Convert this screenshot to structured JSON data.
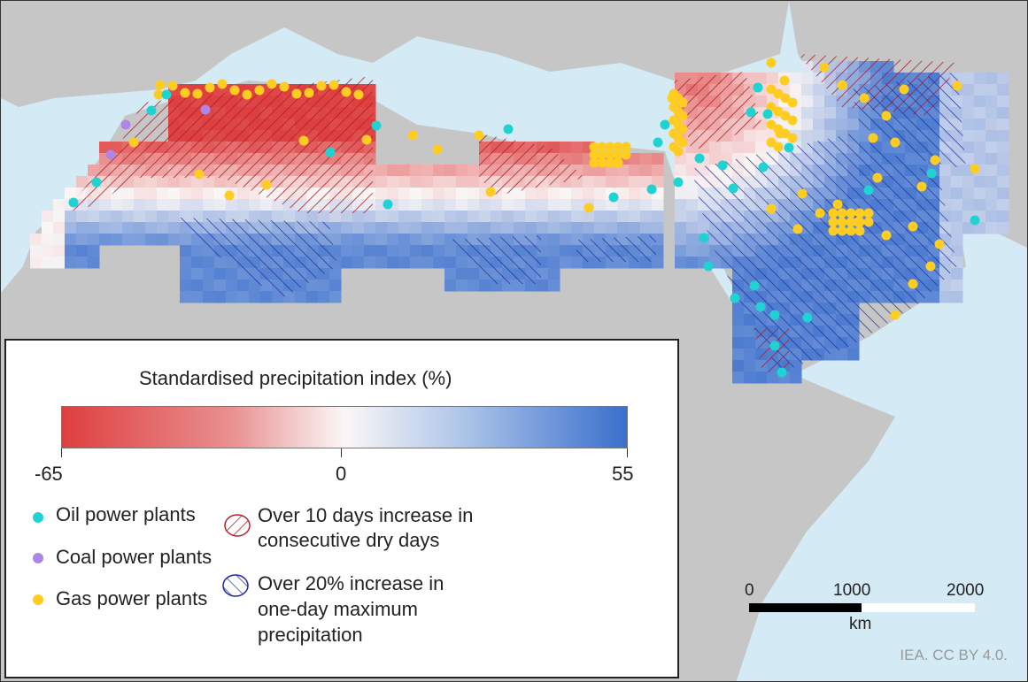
{
  "legend": {
    "title": "Standardised precipitation index (%)",
    "scale_min": "-65",
    "scale_mid": "0",
    "scale_max": "55",
    "ramp_colors": {
      "min": "#de3f3f",
      "mid": "#ffffff",
      "max": "#3a6fcc"
    },
    "items": [
      {
        "label": "Oil power plants",
        "color": "#1fd3d3"
      },
      {
        "label": "Coal power plants",
        "color": "#ad86e6"
      },
      {
        "label": "Gas power plants",
        "color": "#ffcc22"
      }
    ],
    "hatch_items": [
      {
        "label_lines": [
          "Over 10 days increase in",
          "consecutive dry days"
        ],
        "color": "#b8232b"
      },
      {
        "label_lines": [
          "Over 20% increase in",
          "one-day maximum",
          "precipitation"
        ],
        "color": "#1f2a9c"
      }
    ]
  },
  "scale_bar": {
    "labels": [
      "0",
      "1000",
      "2000"
    ],
    "unit": "km"
  },
  "credit": "IEA. CC BY 4.0.",
  "colors": {
    "sea": "#d4eaf4",
    "land": "#c6c6c6"
  }
}
